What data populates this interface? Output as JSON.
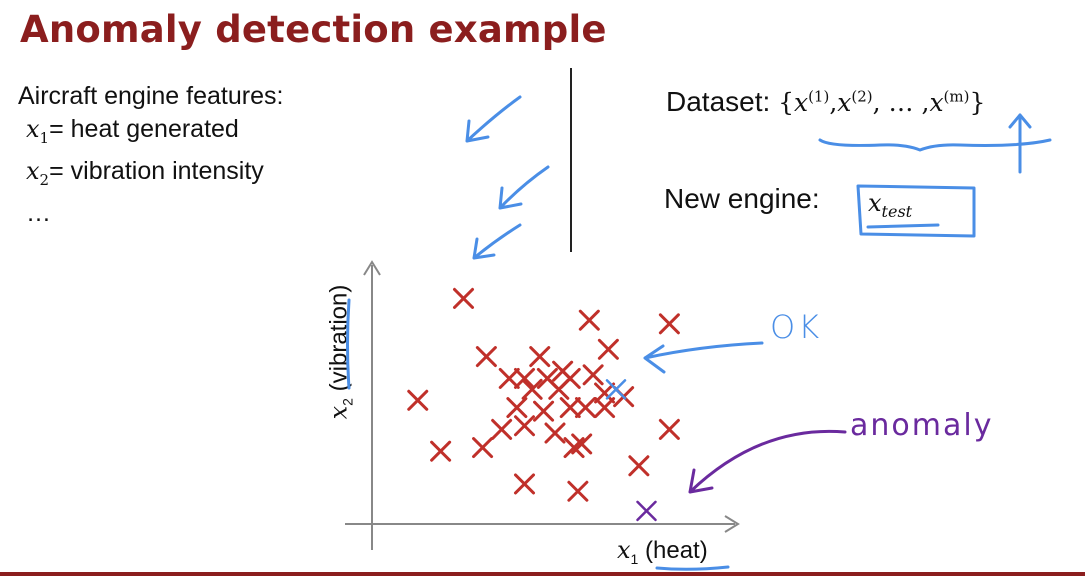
{
  "title": "Anomaly detection example",
  "features": {
    "heading": "Aircraft engine features:",
    "f1_var": "x",
    "f1_sub": "1",
    "f1_text": "= heat generated",
    "f2_var": "x",
    "f2_sub": "2",
    "f2_text": "= vibration intensity",
    "more": "…"
  },
  "dataset": {
    "label": "Dataset:",
    "brace_open": "{",
    "x1": "x",
    "s1": "(1)",
    "x2": "x",
    "s2": "(2)",
    "dots": ", … ,",
    "xm": "x",
    "sm": "(m)",
    "brace_close": "}"
  },
  "new_engine": {
    "label": "New engine:",
    "var": "x",
    "sub": "test"
  },
  "plot": {
    "xlabel_var": "x",
    "xlabel_sub": "1",
    "xlabel_text": "(heat)",
    "ylabel_var": "x",
    "ylabel_sub": "2",
    "ylabel_text": "(vibration)"
  },
  "annotations": {
    "ok": "OK",
    "anomaly": "anomaly"
  },
  "colors": {
    "title": "#8b1e1e",
    "training_points": "#c0302a",
    "ok_ink": "#4a8ee6",
    "anomaly_ink": "#6a2a9e",
    "axes": "#888888"
  },
  "chart_data": {
    "type": "scatter",
    "series": [
      {
        "name": "",
        "marker": "x",
        "color": "#c0302a",
        "points": [
          [
            1.2,
            3.1
          ],
          [
            2.85,
            2.8
          ],
          [
            3.9,
            2.75
          ],
          [
            1.5,
            2.3
          ],
          [
            2.2,
            2.3
          ],
          [
            3.1,
            2.4
          ],
          [
            2.5,
            2.1
          ],
          [
            1.8,
            2.0
          ],
          [
            2.0,
            2.0
          ],
          [
            2.3,
            2.0
          ],
          [
            2.6,
            2.0
          ],
          [
            2.9,
            2.05
          ],
          [
            2.1,
            1.85
          ],
          [
            2.45,
            1.85
          ],
          [
            3.05,
            1.8
          ],
          [
            3.3,
            1.75
          ],
          [
            0.6,
            1.7
          ],
          [
            1.9,
            1.6
          ],
          [
            2.25,
            1.55
          ],
          [
            2.6,
            1.6
          ],
          [
            2.8,
            1.6
          ],
          [
            3.05,
            1.6
          ],
          [
            1.7,
            1.3
          ],
          [
            2.0,
            1.35
          ],
          [
            2.4,
            1.25
          ],
          [
            2.65,
            1.05
          ],
          [
            0.9,
            1.0
          ],
          [
            1.45,
            1.05
          ],
          [
            2.75,
            1.1
          ],
          [
            3.9,
            1.3
          ],
          [
            3.5,
            0.8
          ],
          [
            2.0,
            0.55
          ],
          [
            2.7,
            0.45
          ]
        ]
      },
      {
        "name": "OK",
        "marker": "x",
        "color": "#4a8ee6",
        "points": [
          [
            3.2,
            1.85
          ]
        ]
      },
      {
        "name": "anomaly",
        "marker": "x",
        "color": "#6a2a9e",
        "points": [
          [
            3.6,
            0.18
          ]
        ]
      }
    ],
    "xlabel": "x1 (heat)",
    "ylabel": "x2 (vibration)",
    "xlim": [
      0,
      4.8
    ],
    "ylim": [
      0,
      3.6
    ],
    "grid": false
  }
}
